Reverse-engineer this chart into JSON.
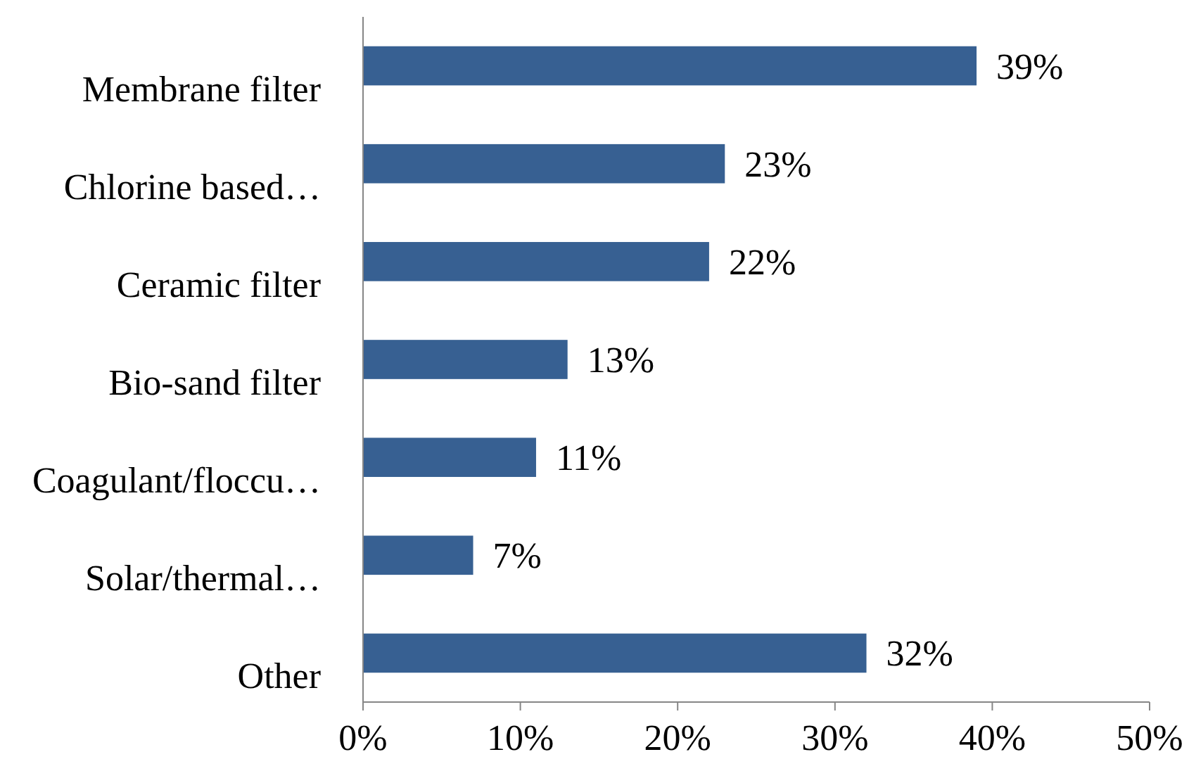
{
  "chart_data": {
    "type": "bar",
    "orientation": "horizontal",
    "categories": [
      "Membrane filter",
      "Chlorine based…",
      "Ceramic filter",
      "Bio-sand filter",
      "Coagulant/floccu…",
      "Solar/thermal…",
      "Other"
    ],
    "values": [
      39,
      23,
      22,
      13,
      11,
      7,
      32
    ],
    "value_labels": [
      "39%",
      "23%",
      "22%",
      "13%",
      "11%",
      "7%",
      "32%"
    ],
    "color": "#376092",
    "xlim": [
      0,
      50
    ],
    "xticks": [
      {
        "value": 0,
        "label": "0%"
      },
      {
        "value": 10,
        "label": "10%"
      },
      {
        "value": 20,
        "label": "20%"
      },
      {
        "value": 30,
        "label": "30%"
      },
      {
        "value": 40,
        "label": "40%"
      },
      {
        "value": 50,
        "label": "50%"
      }
    ],
    "grid": false
  }
}
